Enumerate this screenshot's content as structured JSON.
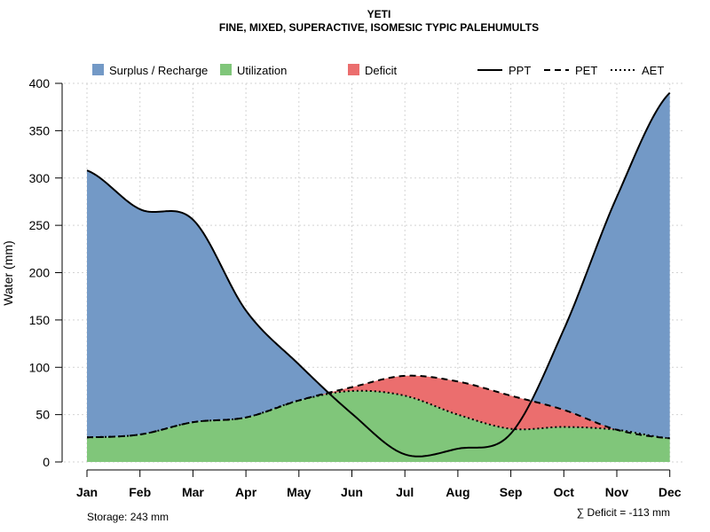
{
  "chart_data": {
    "type": "area",
    "title": "YETI",
    "subtitle": "FINE, MIXED, SUPERACTIVE, ISOMESIC TYPIC PALEHUMULTS",
    "xlabel": "",
    "ylabel": "Water (mm)",
    "categories": [
      "Jan",
      "Feb",
      "Mar",
      "Apr",
      "May",
      "Jun",
      "Jul",
      "Aug",
      "Sep",
      "Oct",
      "Nov",
      "Dec"
    ],
    "ylim": [
      0,
      400
    ],
    "yticks": [
      0,
      50,
      100,
      150,
      200,
      250,
      300,
      350,
      400
    ],
    "grid": true,
    "series": [
      {
        "name": "PPT",
        "style": "solid",
        "values": [
          308,
          267,
          256,
          160,
          103,
          51,
          8,
          14,
          30,
          140,
          280,
          390
        ]
      },
      {
        "name": "PET",
        "style": "dashed",
        "values": [
          26,
          29,
          42,
          47,
          65,
          79,
          91,
          85,
          70,
          55,
          34,
          25
        ]
      },
      {
        "name": "AET",
        "style": "dotted",
        "values": [
          26,
          29,
          42,
          47,
          65,
          75,
          70,
          50,
          35,
          37,
          34,
          25
        ]
      }
    ],
    "legend": [
      {
        "label": "Surplus / Recharge",
        "kind": "fill",
        "color": "#7399c6"
      },
      {
        "label": "Utilization",
        "kind": "fill",
        "color": "#80c67a"
      },
      {
        "label": "Deficit",
        "kind": "fill",
        "color": "#eb6e6e"
      },
      {
        "label": "PPT",
        "kind": "line",
        "dash": "solid"
      },
      {
        "label": "PET",
        "kind": "line",
        "dash": "dashed"
      },
      {
        "label": "AET",
        "kind": "line",
        "dash": "dotted"
      }
    ],
    "legend_position": "top",
    "annotations": {
      "storage": "Storage: 243 mm",
      "deficit": "∑ Deficit = -113 mm"
    },
    "colors": {
      "surplus": "#7399c6",
      "utilization": "#80c67a",
      "deficit": "#eb6e6e",
      "grid": "#d3d3d3",
      "line": "#000000"
    }
  }
}
